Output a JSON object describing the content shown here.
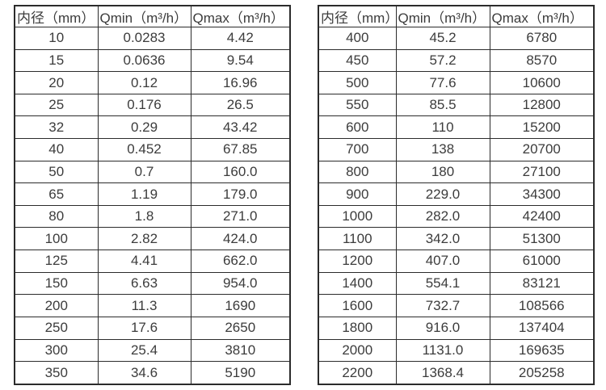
{
  "columns": [
    "内径（mm）",
    "Qmin（m³/h）",
    "Qmax（m³/h）"
  ],
  "tables": [
    {
      "name": "flow-spec-small-diameters",
      "rows": [
        [
          "10",
          "0.0283",
          "4.42"
        ],
        [
          "15",
          "0.0636",
          "9.54"
        ],
        [
          "20",
          "0.12",
          "16.96"
        ],
        [
          "25",
          "0.176",
          "26.5"
        ],
        [
          "32",
          "0.29",
          "43.42"
        ],
        [
          "40",
          "0.452",
          "67.85"
        ],
        [
          "50",
          "0.7",
          "160.0"
        ],
        [
          "65",
          "1.19",
          "179.0"
        ],
        [
          "80",
          "1.8",
          "271.0"
        ],
        [
          "100",
          "2.82",
          "424.0"
        ],
        [
          "125",
          "4.41",
          "662.0"
        ],
        [
          "150",
          "6.63",
          "954.0"
        ],
        [
          "200",
          "11.3",
          "1690"
        ],
        [
          "250",
          "17.6",
          "2650"
        ],
        [
          "300",
          "25.4",
          "3810"
        ],
        [
          "350",
          "34.6",
          "5190"
        ]
      ]
    },
    {
      "name": "flow-spec-large-diameters",
      "rows": [
        [
          "400",
          "45.2",
          "6780"
        ],
        [
          "450",
          "57.2",
          "8570"
        ],
        [
          "500",
          "77.6",
          "10600"
        ],
        [
          "550",
          "85.5",
          "12800"
        ],
        [
          "600",
          "110",
          "15200"
        ],
        [
          "700",
          "138",
          "20700"
        ],
        [
          "800",
          "180",
          "27100"
        ],
        [
          "900",
          "229.0",
          "34300"
        ],
        [
          "1000",
          "282.0",
          "42400"
        ],
        [
          "1100",
          "342.0",
          "51300"
        ],
        [
          "1200",
          "407.0",
          "61000"
        ],
        [
          "1400",
          "554.1",
          "83121"
        ],
        [
          "1600",
          "732.7",
          "108566"
        ],
        [
          "1800",
          "916.0",
          "137404"
        ],
        [
          "2000",
          "1131.0",
          "169635"
        ],
        [
          "2200",
          "1368.4",
          "205258"
        ]
      ]
    }
  ]
}
